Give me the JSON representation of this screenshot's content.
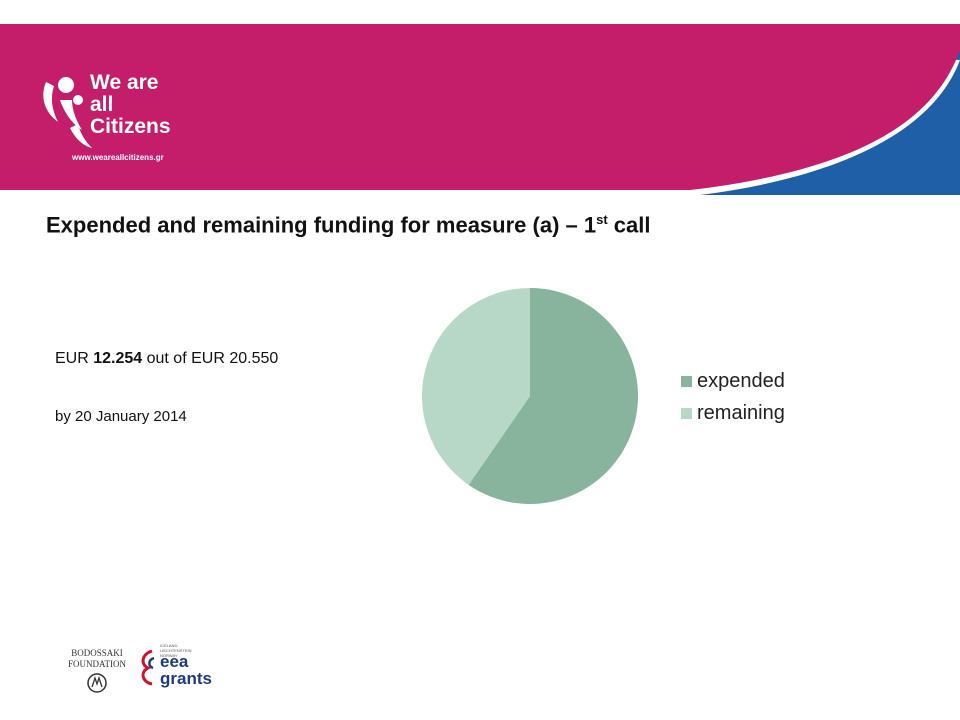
{
  "brand": {
    "line1": "We are",
    "line2": "all",
    "line3": "Citizens",
    "url": "www.weareallcitizens.gr",
    "header_color": "#c41d6a",
    "swoosh_color": "#1f5fa8"
  },
  "slide": {
    "title_main": "Expended and remaining funding for measure (a) – 1",
    "title_sup": "st",
    "title_end": " call",
    "summary_prefix": "EUR ",
    "summary_bold": "12.254",
    "summary_suffix": " out of EUR 20.550",
    "date_text": "by 20 January 2014"
  },
  "chart_data": {
    "type": "pie",
    "categories": [
      "expended",
      "remaining"
    ],
    "values": [
      12254,
      8296
    ],
    "colors": [
      "#88b39c",
      "#b7d8c6"
    ],
    "legend_position": "right"
  },
  "footer": {
    "bodossaki_line1": "BODOSSAKI",
    "bodossaki_line2": "FOUNDATION",
    "eea_small1": "ICELAND",
    "eea_small2": "LIECHTENSTEIN",
    "eea_small3": "NORWAY",
    "eea_line1": "eea",
    "eea_line2": "grants"
  }
}
